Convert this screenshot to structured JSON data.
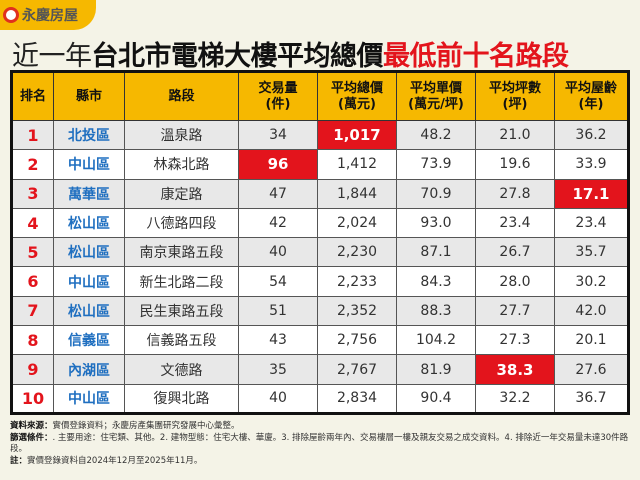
{
  "logo": {
    "text": "永慶房屋"
  },
  "title": {
    "part1": "近一年",
    "part2": "台北市電梯大樓平均總價",
    "part3": "最低前十名路段"
  },
  "columns": [
    "排名",
    "縣市",
    "路段",
    "交易量\n(件)",
    "平均總價\n(萬元)",
    "平均單價\n(萬元/坪)",
    "平均坪數\n(坪)",
    "平均屋齡\n(年)"
  ],
  "rows": [
    {
      "rank": "1",
      "district": "北投區",
      "road": "溫泉路",
      "count": "34",
      "total": "1,017",
      "unit": "48.2",
      "area": "21.0",
      "age": "36.2",
      "highlight": "total"
    },
    {
      "rank": "2",
      "district": "中山區",
      "road": "林森北路",
      "count": "96",
      "total": "1,412",
      "unit": "73.9",
      "area": "19.6",
      "age": "33.9",
      "highlight": "count"
    },
    {
      "rank": "3",
      "district": "萬華區",
      "road": "康定路",
      "count": "47",
      "total": "1,844",
      "unit": "70.9",
      "area": "27.8",
      "age": "17.1",
      "highlight": "age"
    },
    {
      "rank": "4",
      "district": "松山區",
      "road": "八德路四段",
      "count": "42",
      "total": "2,024",
      "unit": "93.0",
      "area": "23.4",
      "age": "23.4",
      "highlight": ""
    },
    {
      "rank": "5",
      "district": "松山區",
      "road": "南京東路五段",
      "count": "40",
      "total": "2,230",
      "unit": "87.1",
      "area": "26.7",
      "age": "35.7",
      "highlight": ""
    },
    {
      "rank": "6",
      "district": "中山區",
      "road": "新生北路二段",
      "count": "54",
      "total": "2,233",
      "unit": "84.3",
      "area": "28.0",
      "age": "30.2",
      "highlight": ""
    },
    {
      "rank": "7",
      "district": "松山區",
      "road": "民生東路五段",
      "count": "51",
      "total": "2,352",
      "unit": "88.3",
      "area": "27.7",
      "age": "42.0",
      "highlight": ""
    },
    {
      "rank": "8",
      "district": "信義區",
      "road": "信義路五段",
      "count": "43",
      "total": "2,756",
      "unit": "104.2",
      "area": "27.3",
      "age": "20.1",
      "highlight": ""
    },
    {
      "rank": "9",
      "district": "內湖區",
      "road": "文德路",
      "count": "35",
      "total": "2,767",
      "unit": "81.9",
      "area": "38.3",
      "age": "27.6",
      "highlight": "area"
    },
    {
      "rank": "10",
      "district": "中山區",
      "road": "復興北路",
      "count": "40",
      "total": "2,834",
      "unit": "90.4",
      "area": "32.2",
      "age": "36.7",
      "highlight": ""
    }
  ],
  "notes": {
    "source_label": "資料來源：",
    "source": "實價登錄資料；永慶房產集團研究發展中心彙整。",
    "filter_label": "篩選條件：",
    "filter": ". 主要用途：住宅類、其他。2. 建物型態：住宅大樓、華廈。3. 排除屋齡兩年內、交易樓層一樓及親友交易之成交資料。4. 排除近一年交易量未達30件路段。",
    "note_label": "註：",
    "note": "實價登錄資料自2024年12月至2025年11月。"
  },
  "colors": {
    "header": "#f6b800",
    "highlight": "#e3141c",
    "district": "#1f6fc0",
    "background": "#f4f3e7"
  }
}
